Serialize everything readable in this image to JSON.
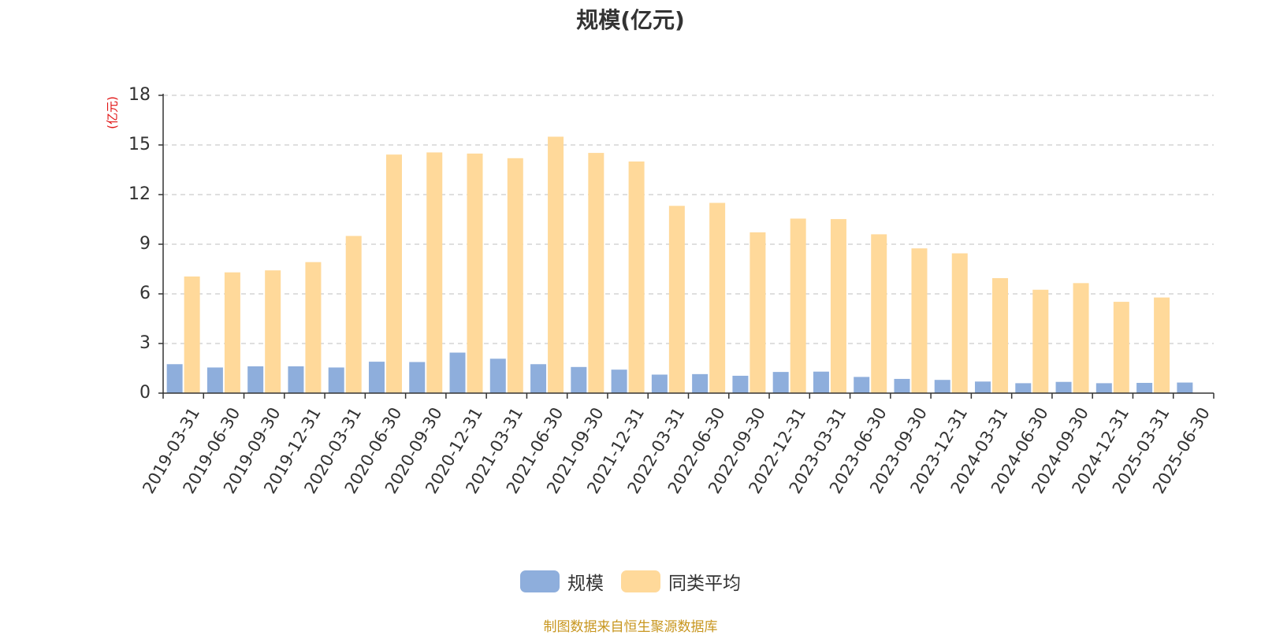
{
  "chart_data": {
    "type": "bar",
    "title": "规模(亿元)",
    "ylabel": "(亿元)",
    "xlabel": "",
    "ylim": [
      0,
      18
    ],
    "yticks": [
      0,
      3,
      6,
      9,
      12,
      15,
      18
    ],
    "grid": true,
    "legend_position": "bottom",
    "categories": [
      "2019-03-31",
      "2019-06-30",
      "2019-09-30",
      "2019-12-31",
      "2020-03-31",
      "2020-06-30",
      "2020-09-30",
      "2020-12-31",
      "2021-03-31",
      "2021-06-30",
      "2021-09-30",
      "2021-12-31",
      "2022-03-31",
      "2022-06-30",
      "2022-09-30",
      "2022-12-31",
      "2023-03-31",
      "2023-06-30",
      "2023-09-30",
      "2023-12-31",
      "2024-03-31",
      "2024-06-30",
      "2024-09-30",
      "2024-12-31",
      "2025-03-31",
      "2025-06-30"
    ],
    "series": [
      {
        "name": "规模",
        "color": "#8eaedc",
        "values": [
          1.75,
          1.55,
          1.62,
          1.62,
          1.55,
          1.9,
          1.88,
          2.45,
          2.08,
          1.75,
          1.58,
          1.42,
          1.12,
          1.15,
          1.05,
          1.28,
          1.3,
          0.98,
          0.86,
          0.8,
          0.7,
          0.6,
          0.68,
          0.6,
          0.62,
          0.64
        ]
      },
      {
        "name": "同类平均",
        "color": "#ffd99a",
        "values": [
          7.05,
          7.3,
          7.42,
          7.92,
          9.5,
          14.42,
          14.55,
          14.48,
          14.2,
          15.5,
          14.52,
          14.0,
          11.32,
          11.5,
          9.72,
          10.55,
          10.52,
          9.6,
          8.75,
          8.45,
          6.95,
          6.25,
          6.65,
          5.52,
          5.78,
          null
        ]
      }
    ]
  },
  "source_note": "制图数据来自恒生聚源数据库",
  "colors": {
    "axis": "#333333",
    "grid": "#cccccc",
    "ylabel": "#e01010",
    "source": "#c8961f"
  }
}
